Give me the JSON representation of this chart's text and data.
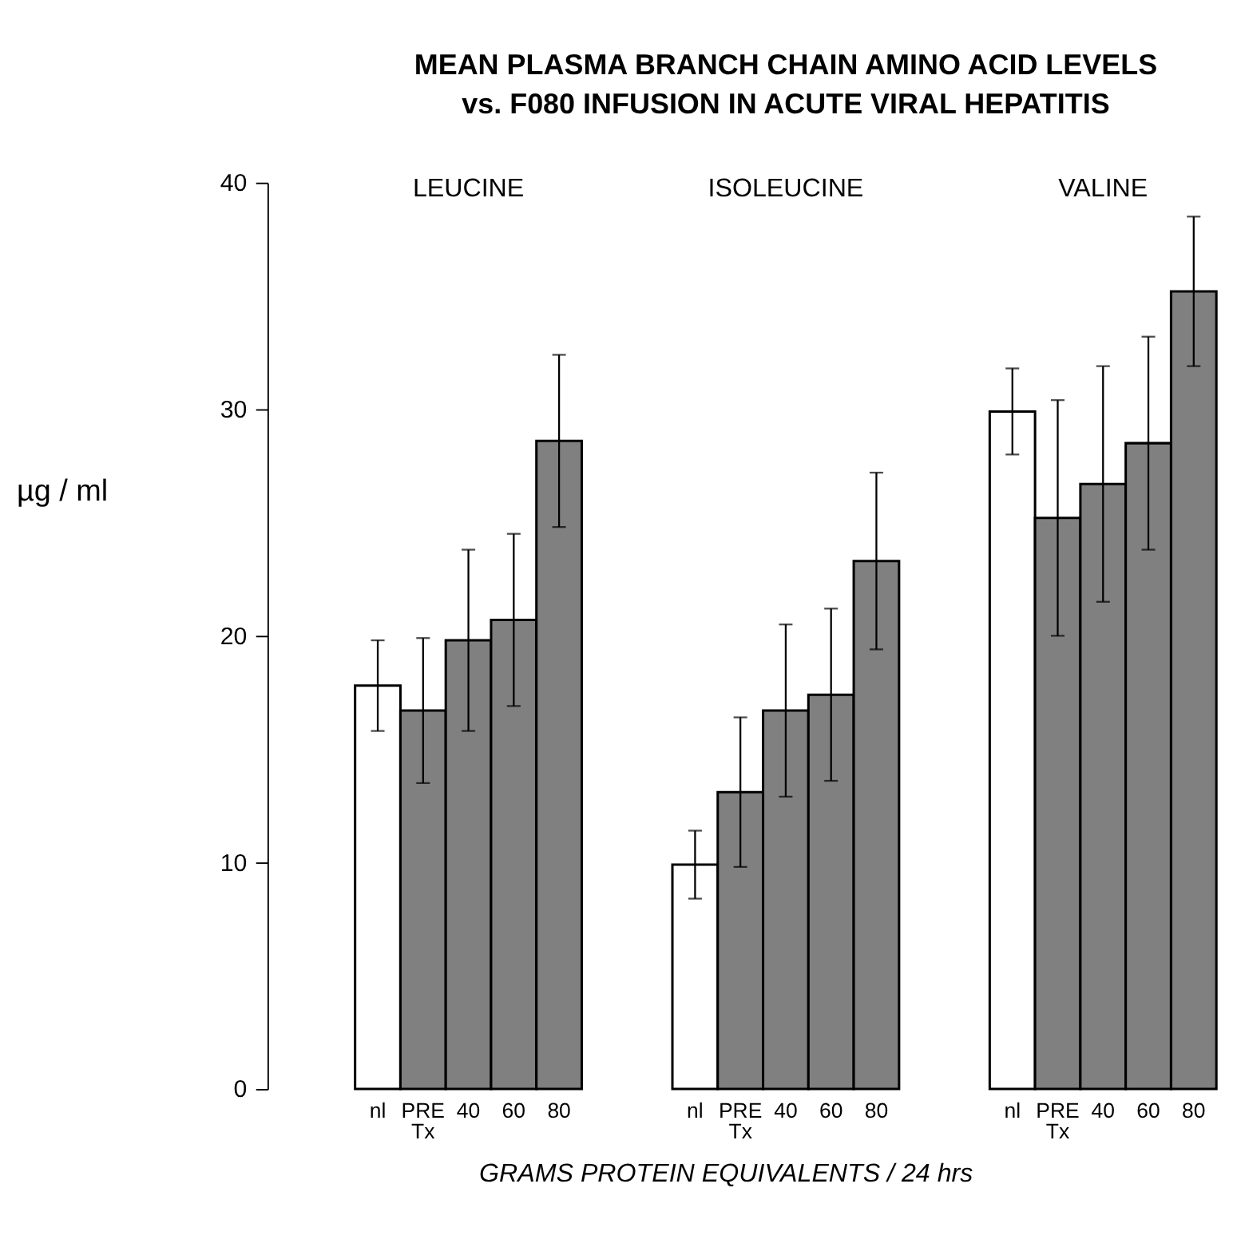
{
  "chart_data": {
    "type": "bar",
    "title": "MEAN PLASMA BRANCH CHAIN AMINO ACID LEVELS\nvs. F080 INFUSION IN ACUTE VIRAL HEPATITIS",
    "xlabel": "GRAMS PROTEIN EQUIVALENTS / 24 hrs",
    "ylabel": "µg / ml",
    "categories": [
      "LEUCINE",
      "ISOLEUCINE",
      "VALINE"
    ],
    "series": [
      {
        "name": "nl",
        "color": "#ffffff",
        "values": [
          17.8,
          9.9,
          29.9
        ],
        "errors": [
          2.0,
          1.5,
          1.9
        ]
      },
      {
        "name": "PRE\nTx",
        "color": "#808080",
        "values": [
          16.7,
          13.1,
          25.2
        ],
        "errors": [
          3.2,
          3.3,
          5.2
        ]
      },
      {
        "name": "40",
        "color": "#808080",
        "values": [
          19.8,
          16.7,
          26.7
        ],
        "errors": [
          4.0,
          3.8,
          5.2
        ]
      },
      {
        "name": "60",
        "color": "#808080",
        "values": [
          20.7,
          17.4,
          28.5
        ],
        "errors": [
          3.8,
          3.8,
          4.7
        ]
      },
      {
        "name": "80",
        "color": "#808080",
        "values": [
          28.6,
          23.3,
          35.2
        ],
        "errors": [
          3.8,
          3.9,
          3.3
        ]
      }
    ],
    "ylim": [
      0,
      40
    ],
    "yticks": [
      0,
      10,
      20,
      30,
      40
    ]
  }
}
